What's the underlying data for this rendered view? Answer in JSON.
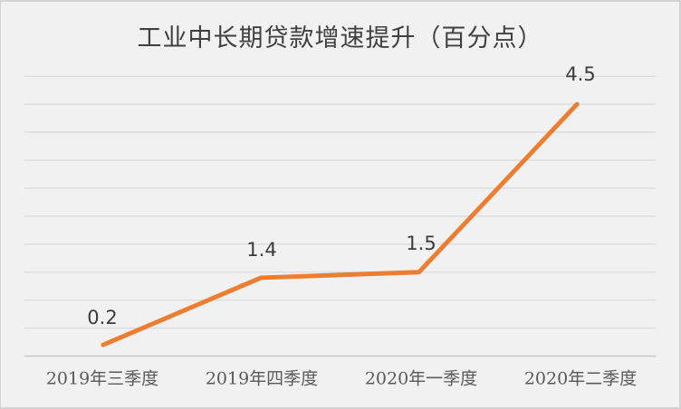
{
  "title": "工业中长期贷款增速提升（百分点）",
  "colors": {
    "background": "#F1F1F1",
    "border": "#D3D3D3",
    "gridline": "#DCDCDC",
    "axis_line": "#C8C8C8",
    "series_line": "#ED7D31",
    "title_text": "#404040",
    "data_label_text": "#3B3B3B",
    "tick_label_text": "#595959"
  },
  "chart_data": {
    "type": "line",
    "title": "工业中长期贷款增速提升（百分点）",
    "categories": [
      "2019年三季度",
      "2019年四季度",
      "2020年一季度",
      "2020年二季度"
    ],
    "series": [
      {
        "name": "工业中长期贷款增速提升",
        "color": "#ED7D31",
        "values": [
          0.2,
          1.4,
          1.5,
          4.5
        ],
        "data_labels": [
          "0.2",
          "1.4",
          "1.5",
          "4.5"
        ]
      }
    ],
    "xlabel": "",
    "ylabel": "",
    "ylim": [
      0,
      5
    ],
    "gridline_interval": 0.5,
    "grid": true,
    "legend_visible": false,
    "y_tick_labels_visible": false,
    "data_labels_position": "above"
  }
}
